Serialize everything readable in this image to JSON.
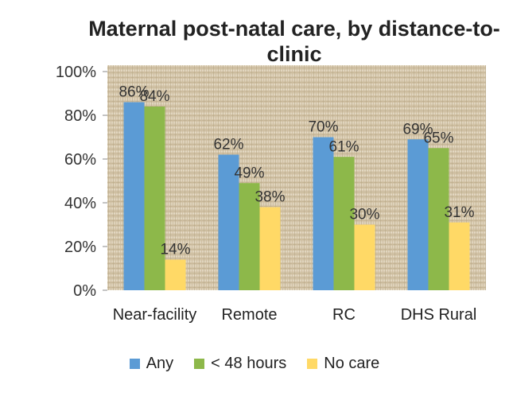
{
  "chart_data": {
    "type": "bar",
    "title": "Maternal post-natal care, by distance-to-clinic",
    "categories": [
      "Near-facility",
      "Remote",
      "RC",
      "DHS Rural"
    ],
    "series": [
      {
        "name": "Any",
        "values": [
          86,
          62,
          70,
          69
        ],
        "labels": [
          "86%",
          "62%",
          "70%",
          "69%"
        ],
        "color": "#5B9BD5"
      },
      {
        "name": "< 48 hours",
        "values": [
          84,
          49,
          61,
          65
        ],
        "labels": [
          "84%",
          "49%",
          "61%",
          "65%"
        ],
        "color": "#8DB84A"
      },
      {
        "name": "No care",
        "values": [
          14,
          38,
          30,
          31
        ],
        "labels": [
          "14%",
          "38%",
          "30%",
          "31%"
        ],
        "color": "#FFD966"
      }
    ],
    "ylim": [
      0,
      100
    ],
    "yticks": [
      0,
      20,
      40,
      60,
      80,
      100
    ],
    "ytick_labels": [
      "0%",
      "20%",
      "40%",
      "60%",
      "80%",
      "100%"
    ],
    "legend_position": "bottom",
    "grid": false,
    "plot_background": "burlap-texture"
  }
}
